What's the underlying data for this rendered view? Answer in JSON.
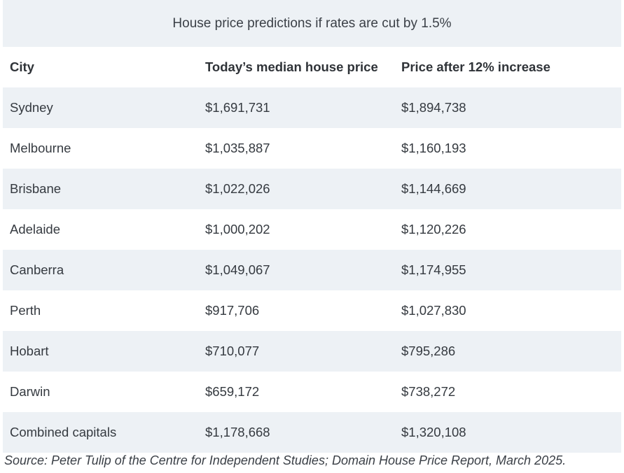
{
  "title": "House price predictions if rates are cut by 1.5%",
  "headers": [
    "City",
    "Today’s median house price",
    "Price after 12% increase"
  ],
  "rows": [
    [
      "Sydney",
      "$1,691,731",
      "$1,894,738"
    ],
    [
      "Melbourne",
      "$1,035,887",
      "$1,160,193"
    ],
    [
      "Brisbane",
      "$1,022,026",
      "$1,144,669"
    ],
    [
      "Adelaide",
      "$1,000,202",
      "$1,120,226"
    ],
    [
      "Canberra",
      "$1,049,067",
      "$1,174,955"
    ],
    [
      "Perth",
      "$917,706",
      "$1,027,830"
    ],
    [
      "Hobart",
      "$710,077",
      "$795,286"
    ],
    [
      "Darwin",
      "$659,172",
      "$738,272"
    ],
    [
      "Combined capitals",
      "$1,178,668",
      "$1,320,108"
    ]
  ],
  "source": "Source: Peter Tulip of the Centre for Independent Studies; Domain House Price Report, March 2025.",
  "colors": {
    "stripe": "#edf1f5",
    "text": "#2f3338"
  }
}
